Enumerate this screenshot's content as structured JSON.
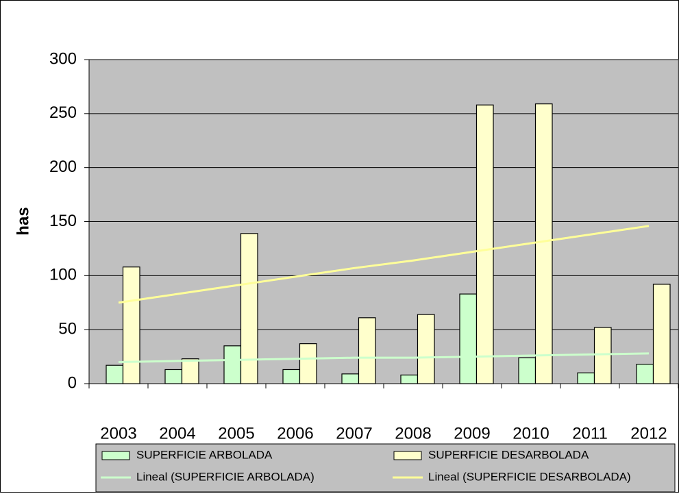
{
  "chart_data": {
    "type": "bar",
    "y_label": "has",
    "categories": [
      "2003",
      "2004",
      "2005",
      "2006",
      "2007",
      "2008",
      "2009",
      "2010",
      "2011",
      "2012"
    ],
    "series": [
      {
        "name": "SUPERFICIE ARBOLADA",
        "color": "#ccffcc",
        "values": [
          17,
          13,
          35,
          13,
          9,
          8,
          83,
          24,
          10,
          18
        ]
      },
      {
        "name": "SUPERFICIE DESARBOLADA",
        "color": "#ffffcc",
        "values": [
          108,
          23,
          139,
          37,
          61,
          64,
          258,
          259,
          52,
          92
        ]
      },
      {
        "name": "Lineal (SUPERFICIE ARBOLADA)",
        "type": "line",
        "color": "#ccffcc",
        "values": [
          20,
          21,
          22,
          23,
          24,
          24,
          25,
          26,
          27,
          28
        ]
      },
      {
        "name": "Lineal (SUPERFICIE DESARBOLADA)",
        "type": "line",
        "color": "#ffff99",
        "values": [
          75,
          83,
          91,
          99,
          107,
          114,
          122,
          130,
          138,
          146
        ]
      }
    ],
    "ylim": [
      0,
      300
    ],
    "yticks": [
      0,
      50,
      100,
      150,
      200,
      250,
      300
    ],
    "grid": true,
    "legend": "bottom"
  }
}
